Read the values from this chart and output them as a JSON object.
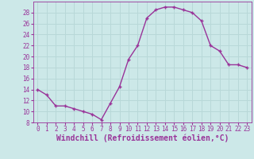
{
  "x": [
    0,
    1,
    2,
    3,
    4,
    5,
    6,
    7,
    8,
    9,
    10,
    11,
    12,
    13,
    14,
    15,
    16,
    17,
    18,
    19,
    20,
    21,
    22,
    23
  ],
  "y": [
    14,
    13,
    11,
    11,
    10.5,
    10,
    9.5,
    8.5,
    11.5,
    14.5,
    19.5,
    22,
    27,
    28.5,
    29,
    29,
    28.5,
    28,
    26.5,
    22,
    21,
    18.5,
    18.5,
    18
  ],
  "line_color": "#993399",
  "marker_color": "#993399",
  "bg_color": "#cce8e8",
  "grid_color": "#b0d8d8",
  "xlabel": "Windchill (Refroidissement éolien,°C)",
  "xlabel_color": "#993399",
  "ylim": [
    8,
    30
  ],
  "xlim": [
    -0.5,
    23.5
  ],
  "yticks": [
    8,
    10,
    12,
    14,
    16,
    18,
    20,
    22,
    24,
    26,
    28
  ],
  "xticks": [
    0,
    1,
    2,
    3,
    4,
    5,
    6,
    7,
    8,
    9,
    10,
    11,
    12,
    13,
    14,
    15,
    16,
    17,
    18,
    19,
    20,
    21,
    22,
    23
  ],
  "tick_fontsize": 5.5,
  "xlabel_fontsize": 7.0,
  "line_width": 1.0,
  "marker_size": 3.5
}
